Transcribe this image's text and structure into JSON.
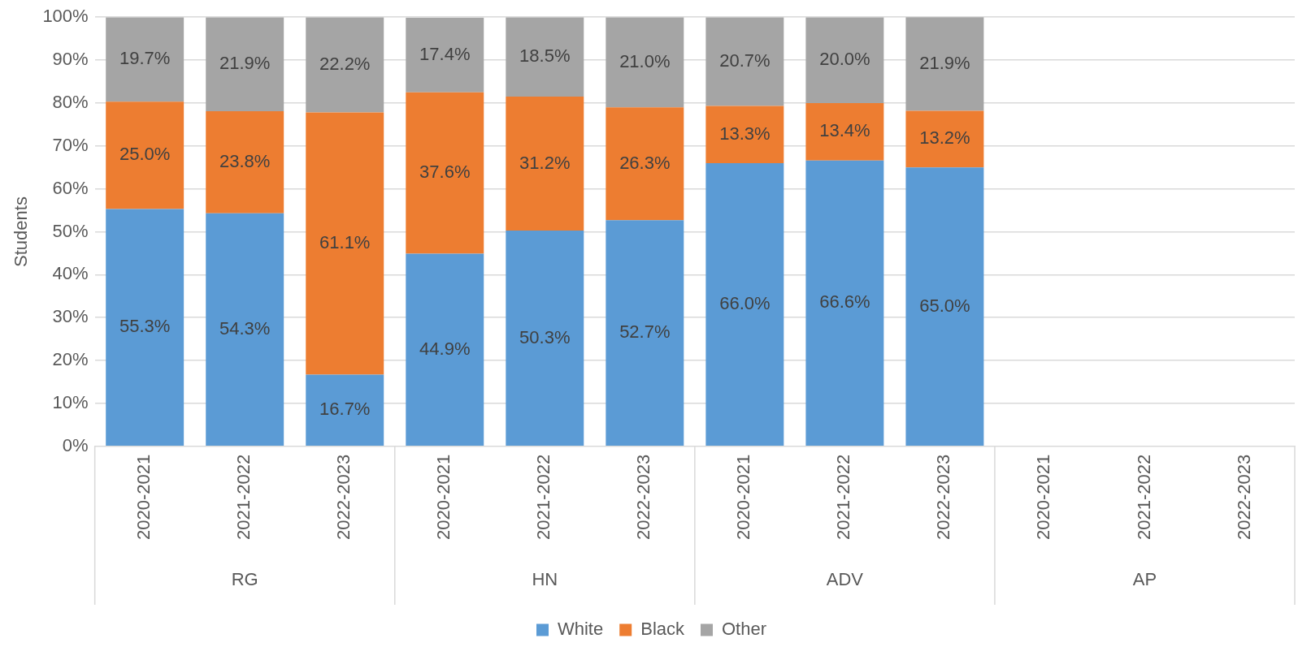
{
  "chart_data": {
    "type": "bar",
    "stacked": true,
    "ylabel": "Students",
    "categories": [
      "2020-2021",
      "2021-2022",
      "2022-2023",
      "2020-2021",
      "2021-2022",
      "2022-2023",
      "2020-2021",
      "2021-2022",
      "2022-2023",
      "2020-2021",
      "2021-2022",
      "2022-2023"
    ],
    "annotations": [
      "RG",
      "HN",
      "ADV",
      "AP"
    ],
    "series": [
      {
        "name": "White",
        "color": "#5b9bd5",
        "values": [
          55.3,
          54.3,
          16.7,
          44.9,
          50.3,
          52.7,
          66.0,
          66.6,
          65.0,
          null,
          null,
          null
        ],
        "value_labels": [
          "55.3%",
          "54.3%",
          "16.7%",
          "44.9%",
          "50.3%",
          "52.7%",
          "66.0%",
          "66.6%",
          "65.0%",
          null,
          null,
          null
        ]
      },
      {
        "name": "Black",
        "color": "#ed7d31",
        "values": [
          25.0,
          23.8,
          61.1,
          37.6,
          31.2,
          26.3,
          13.3,
          13.4,
          13.2,
          null,
          null,
          null
        ],
        "value_labels": [
          "25.0%",
          "23.8%",
          "61.1%",
          "37.6%",
          "31.2%",
          "26.3%",
          "13.3%",
          "13.4%",
          "13.2%",
          null,
          null,
          null
        ]
      },
      {
        "name": "Other",
        "color": "#a5a5a5",
        "values": [
          19.7,
          21.9,
          22.2,
          17.4,
          18.5,
          21.0,
          20.7,
          20.0,
          21.9,
          null,
          null,
          null
        ],
        "value_labels": [
          "19.7%",
          "21.9%",
          "22.2%",
          "17.4%",
          "18.5%",
          "21.0%",
          "20.7%",
          "20.0%",
          "21.9%",
          null,
          null,
          null
        ]
      }
    ],
    "ylim": [
      0,
      100
    ],
    "yticks": [
      {
        "value": 0,
        "label": "0%"
      },
      {
        "value": 10,
        "label": "10%"
      },
      {
        "value": 20,
        "label": "20%"
      },
      {
        "value": 30,
        "label": "30%"
      },
      {
        "value": 40,
        "label": "40%"
      },
      {
        "value": 50,
        "label": "50%"
      },
      {
        "value": 60,
        "label": "60%"
      },
      {
        "value": 70,
        "label": "70%"
      },
      {
        "value": 80,
        "label": "80%"
      },
      {
        "value": 90,
        "label": "90%"
      },
      {
        "value": 100,
        "label": "100%"
      }
    ],
    "grid": "y",
    "legend": "bottom"
  }
}
